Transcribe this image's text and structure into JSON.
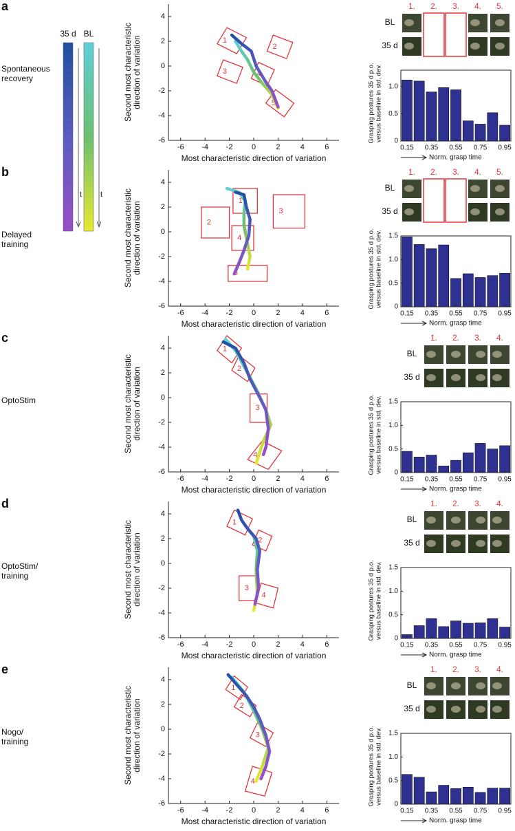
{
  "colorbar_time_labels": [
    "t",
    "t"
  ],
  "panels": [
    {
      "letter": "a",
      "condition": [
        "Spontaneous",
        "recovery"
      ],
      "image_rows": [
        "BL",
        "35 d"
      ],
      "image_labels": [
        "1.",
        "2.",
        "3.",
        "4.",
        "5."
      ],
      "highlighted_images": [
        false,
        true,
        true,
        false,
        false
      ]
    },
    {
      "letter": "b",
      "condition": [
        "Delayed",
        "training"
      ],
      "image_rows": [
        "BL",
        "35 d"
      ],
      "image_labels": [
        "1.",
        "2.",
        "3.",
        "4.",
        "5."
      ],
      "highlighted_images": [
        false,
        true,
        true,
        false,
        false
      ]
    },
    {
      "letter": "c",
      "condition": [
        "OptoStim"
      ],
      "image_rows": [
        "BL",
        "35 d"
      ],
      "image_labels": [
        "1.",
        "2.",
        "3.",
        "4."
      ],
      "highlighted_images": [
        false,
        false,
        false,
        false
      ]
    },
    {
      "letter": "d",
      "condition": [
        "OptoStim/",
        "training"
      ],
      "image_rows": [
        "BL",
        "35 d"
      ],
      "image_labels": [
        "1.",
        "2.",
        "3.",
        "4."
      ],
      "highlighted_images": [
        false,
        false,
        false,
        false
      ]
    },
    {
      "letter": "e",
      "condition": [
        "Nogo/",
        "training"
      ],
      "image_rows": [
        "BL",
        "35 d"
      ],
      "image_labels": [
        "1.",
        "2.",
        "3.",
        "4."
      ],
      "highlighted_images": [
        false,
        false,
        false,
        false
      ]
    }
  ],
  "chart_data": [
    {
      "type": "line",
      "x_label": "Most characteristic direction of variation",
      "y_label": [
        "Second most characteristic",
        "direction of variation"
      ],
      "xlim": [
        -7,
        7
      ],
      "ylim": [
        -6,
        5
      ],
      "xticks": [
        -6,
        -4,
        -2,
        0,
        2,
        4,
        6
      ],
      "yticks": [
        -6,
        -4,
        -2,
        0,
        2,
        4
      ],
      "series": [
        {
          "name": "35 d",
          "color": [
            "#2150a0",
            "#5a5cc0",
            "#9a50c8"
          ],
          "x": [
            -1.8,
            -1,
            -0.2,
            0.2,
            1,
            1.5,
            2
          ],
          "values": [
            2.5,
            1.8,
            1.2,
            0,
            -1.3,
            -2,
            -3.3
          ]
        },
        {
          "name": "BL",
          "color": [
            "#5ed0d8",
            "#6cc070",
            "#e8e830"
          ],
          "x": [
            -1.5,
            -1,
            -0.5,
            0,
            0.8,
            1.5,
            2
          ],
          "values": [
            2,
            1.2,
            0.5,
            -0.5,
            -1.5,
            -2.3,
            -3.4
          ]
        }
      ],
      "regions": [
        {
          "label": "1",
          "x": [
            -3,
            -2.2,
            -0.6,
            -1.4
          ],
          "y": [
            1.8,
            3.1,
            2.3,
            1
          ]
        },
        {
          "label": "2",
          "x": [
            1.1,
            1.6,
            3.2,
            2.7
          ],
          "y": [
            1.2,
            2.5,
            1.9,
            0.6
          ]
        },
        {
          "label": "3",
          "x": [
            -3,
            -2.5,
            -0.9,
            -1.4
          ],
          "y": [
            -0.8,
            0.5,
            -0.1,
            -1.4
          ]
        },
        {
          "label": "4",
          "x": [
            -0.2,
            0.4,
            1.7,
            1.1
          ],
          "y": [
            -1,
            0.3,
            -0.3,
            -1.6
          ]
        },
        {
          "label": "5",
          "x": [
            1,
            1.8,
            3.3,
            2.5
          ],
          "y": [
            -3,
            -1.9,
            -3,
            -4.1
          ]
        }
      ]
    },
    {
      "type": "bar",
      "x_label": "Norm. grasp time",
      "y_label": [
        "Grasping postures 35 d p.o.",
        "versus baseline in std. dev."
      ],
      "color": "#2e3192",
      "x": [
        0.15,
        0.25,
        0.35,
        0.45,
        0.55,
        0.65,
        0.75,
        0.85,
        0.95
      ],
      "values": [
        1.12,
        1.1,
        0.9,
        0.98,
        0.94,
        0.37,
        0.31,
        0.52,
        0.29
      ],
      "xlim": [
        0.1,
        1
      ],
      "ylim": [
        0,
        1.3
      ],
      "xticks": [
        0.15,
        0.35,
        0.55,
        0.75,
        0.95
      ],
      "yticks": [
        0,
        0.5,
        {
          "value": 1,
          "label": "1.0"
        }
      ]
    },
    {
      "type": "line",
      "x_label": "Most characteristic direction of variation",
      "y_label": [
        "Second most characteristic",
        "direction of variation"
      ],
      "xlim": [
        -7,
        7
      ],
      "ylim": [
        -6,
        5
      ],
      "xticks": [
        -6,
        -4,
        -2,
        0,
        2,
        4,
        6
      ],
      "yticks": [
        -6,
        -4,
        -2,
        0,
        2,
        4
      ],
      "series": [
        {
          "color": [
            "#2150a0",
            "#5a5cc0",
            "#9a50c8"
          ],
          "x": [
            -1.5,
            -0.8,
            -0.6,
            -0.3,
            -0.4,
            -0.8,
            -1.2,
            -1.6
          ],
          "values": [
            3.2,
            3,
            2,
            1,
            -0.3,
            -1.5,
            -2.5,
            -3.4
          ]
        },
        {
          "color": [
            "#5ed0d8",
            "#6cc070",
            "#e8e830"
          ],
          "x": [
            -2.2,
            -1.2,
            -0.7,
            -0.8,
            -0.8,
            -0.5,
            -0.3,
            -0.5
          ],
          "values": [
            3.5,
            3.2,
            2.5,
            1.5,
            0.5,
            -1,
            -2,
            -3
          ]
        }
      ],
      "regions": [
        {
          "label": "1",
          "x": [
            -1.7,
            -1.7,
            0.3,
            0.3
          ],
          "y": [
            1.5,
            3.5,
            3.5,
            1.5
          ]
        },
        {
          "label": "2",
          "x": [
            -4.3,
            -4.3,
            -2,
            -2
          ],
          "y": [
            -0.5,
            2,
            2,
            -0.5
          ]
        },
        {
          "label": "3",
          "x": [
            1.6,
            1.6,
            4.2,
            4.2
          ],
          "y": [
            0.3,
            3,
            3,
            0.3
          ]
        },
        {
          "label": "4",
          "x": [
            -1.8,
            -1.8,
            0,
            0
          ],
          "y": [
            -1.5,
            0.5,
            0.5,
            -1.5
          ]
        },
        {
          "label": "5",
          "x": [
            -2.1,
            -2.1,
            1.1,
            1.1
          ],
          "y": [
            -4,
            -2.7,
            -2.7,
            -4
          ]
        }
      ]
    },
    {
      "type": "bar",
      "x_label": "Norm. grasp time",
      "y_label": [
        "Grasping postures 35 d p.o.",
        "versus baseline in std. dev."
      ],
      "color": "#2e3192",
      "x": [
        0.15,
        0.25,
        0.35,
        0.45,
        0.55,
        0.65,
        0.75,
        0.85,
        0.95
      ],
      "values": [
        1.48,
        1.32,
        1.23,
        1.31,
        0.6,
        0.7,
        0.62,
        0.66,
        0.71
      ],
      "xlim": [
        0.1,
        1
      ],
      "ylim": [
        0,
        1.5
      ],
      "xticks": [
        0.15,
        0.35,
        0.55,
        0.75,
        0.95
      ],
      "yticks": [
        0,
        0.5,
        {
          "value": 1,
          "label": "1.0"
        },
        1.5
      ]
    },
    {
      "type": "line",
      "x_label": "Most characteristic direction of variation",
      "y_label": [
        "Second most characteristic",
        "direction of variation"
      ],
      "xlim": [
        -7,
        7
      ],
      "ylim": [
        -6,
        5
      ],
      "xticks": [
        -6,
        -4,
        -2,
        0,
        2,
        4,
        6
      ],
      "yticks": [
        -6,
        -4,
        -2,
        0,
        2,
        4
      ],
      "series": [
        {
          "color": [
            "#2150a0",
            "#5a5cc0",
            "#9a50c8"
          ],
          "x": [
            -2.5,
            -1.5,
            -0.8,
            -0.3,
            0.5,
            1,
            1.2,
            1,
            0.8
          ],
          "values": [
            4.5,
            4,
            2.8,
            1.5,
            0,
            -1,
            -2.5,
            -4,
            -4.6
          ]
        },
        {
          "color": [
            "#5ed0d8",
            "#6cc070",
            "#e8e830"
          ],
          "x": [
            -2.3,
            -1.5,
            -0.5,
            0.3,
            1,
            1.4,
            0.8,
            0.2
          ],
          "values": [
            4.7,
            3.8,
            2,
            0.5,
            -1,
            -2.2,
            -3.5,
            -5.3
          ]
        }
      ],
      "regions": [
        {
          "label": "1",
          "x": [
            -3,
            -2.2,
            -1,
            -1.8
          ],
          "y": [
            3.8,
            5,
            4,
            2.8
          ]
        },
        {
          "label": "2",
          "x": [
            -1.8,
            -1.2,
            0.1,
            -0.5
          ],
          "y": [
            2.2,
            3.4,
            2.4,
            1.3
          ]
        },
        {
          "label": "3",
          "x": [
            -0.3,
            -0.3,
            1.1,
            1.1
          ],
          "y": [
            -2,
            0.3,
            0.3,
            -2
          ]
        },
        {
          "label": "4",
          "x": [
            -0.5,
            0.7,
            2.3,
            1.2
          ],
          "y": [
            -5,
            -3.5,
            -4.3,
            -5.8
          ]
        }
      ]
    },
    {
      "type": "bar",
      "x_label": "Norm. grasp time",
      "y_label": [
        "Grasping postures 35 d p.o.",
        "versus baseline in std. dev."
      ],
      "color": "#2e3192",
      "x": [
        0.15,
        0.25,
        0.35,
        0.45,
        0.55,
        0.65,
        0.75,
        0.85,
        0.95
      ],
      "values": [
        0.45,
        0.33,
        0.37,
        0.14,
        0.26,
        0.42,
        0.62,
        0.5,
        0.57
      ],
      "xlim": [
        0.1,
        1
      ],
      "ylim": [
        0,
        1.5
      ],
      "xticks": [
        0.15,
        0.35,
        0.55,
        0.75,
        0.95
      ],
      "yticks": [
        0,
        0.5,
        {
          "value": 1,
          "label": "1.0"
        },
        1.5
      ]
    },
    {
      "type": "line",
      "x_label": "Most characteristic direction of variation",
      "y_label": [
        "Second most characteristic",
        "direction of variation"
      ],
      "xlim": [
        -7,
        7
      ],
      "ylim": [
        -6,
        5
      ],
      "xticks": [
        -6,
        -4,
        -2,
        0,
        2,
        4,
        6
      ],
      "yticks": [
        -6,
        -4,
        -2,
        0,
        2,
        4
      ],
      "series": [
        {
          "color": [
            "#2150a0",
            "#5a5cc0",
            "#9a50c8"
          ],
          "x": [
            -1.3,
            -1,
            -0.5,
            0.2,
            0.5,
            0.3,
            0.4,
            0.1
          ],
          "values": [
            4.3,
            3.5,
            2.8,
            2,
            1,
            -0.5,
            -2,
            -3.3
          ]
        },
        {
          "color": [
            "#5ed0d8",
            "#6cc070",
            "#e8e830"
          ],
          "x": [
            -0.8,
            0,
            0.3,
            0.2,
            0.3,
            0
          ],
          "values": [
            3.2,
            2.2,
            1,
            -0.5,
            -2.5,
            -3.8
          ]
        }
      ],
      "regions": [
        {
          "label": "1",
          "x": [
            -2.2,
            -1.6,
            -0.1,
            -0.7
          ],
          "y": [
            3,
            4.3,
            3.6,
            2.3
          ]
        },
        {
          "label": "2",
          "x": [
            -0.1,
            0.4,
            1.5,
            1
          ],
          "y": [
            1.5,
            2.7,
            2.2,
            1
          ]
        },
        {
          "label": "3",
          "x": [
            -1.2,
            -1.2,
            0.2,
            0.2
          ],
          "y": [
            -3,
            -1,
            -1,
            -3
          ]
        },
        {
          "label": "4",
          "x": [
            0.2,
            0.6,
            2,
            1.6
          ],
          "y": [
            -3.2,
            -1.6,
            -2,
            -3.6
          ]
        }
      ]
    },
    {
      "type": "bar",
      "x_label": "Norm. grasp time",
      "y_label": [
        "Grasping postures 35 d p.o.",
        "versus baseline in std. dev."
      ],
      "color": "#2e3192",
      "x": [
        0.15,
        0.25,
        0.35,
        0.45,
        0.55,
        0.65,
        0.75,
        0.85,
        0.95
      ],
      "values": [
        0.08,
        0.27,
        0.42,
        0.25,
        0.37,
        0.32,
        0.33,
        0.42,
        0.24
      ],
      "xlim": [
        0.1,
        1
      ],
      "ylim": [
        0,
        1.5
      ],
      "xticks": [
        0.15,
        0.35,
        0.55,
        0.75,
        0.95
      ],
      "yticks": [
        0,
        0.5,
        {
          "value": 1,
          "label": "1.0"
        },
        1.5
      ]
    },
    {
      "type": "line",
      "x_label": "Most characteristic direction of variation",
      "y_label": [
        "Second most characteristic",
        "direction of variation"
      ],
      "xlim": [
        -7,
        7
      ],
      "ylim": [
        -6,
        5
      ],
      "xticks": [
        -6,
        -4,
        -2,
        0,
        2,
        4,
        6
      ],
      "yticks": [
        -6,
        -4,
        -2,
        0,
        2,
        4
      ],
      "series": [
        {
          "color": [
            "#2150a0",
            "#5a5cc0",
            "#9a50c8"
          ],
          "x": [
            -2.1,
            -1.4,
            -0.6,
            0,
            0.5,
            1,
            1.3,
            1,
            0.6
          ],
          "values": [
            4.4,
            3.6,
            2.7,
            1.8,
            0.8,
            -0.5,
            -1.8,
            -3,
            -4
          ]
        },
        {
          "color": [
            "#5ed0d8",
            "#6cc070",
            "#e8e830"
          ],
          "x": [
            -1.8,
            -0.8,
            0,
            0.7,
            1.2,
            0.7,
            0.2
          ],
          "values": [
            4.2,
            3,
            1.5,
            0,
            -1.5,
            -3,
            -4.2
          ]
        }
      ],
      "regions": [
        {
          "label": "1",
          "x": [
            -2.3,
            -1.6,
            -0.5,
            -1.1
          ],
          "y": [
            3.2,
            4.3,
            3.4,
            2.4
          ]
        },
        {
          "label": "2",
          "x": [
            -1.6,
            -1,
            0.2,
            -0.3
          ],
          "y": [
            1.8,
            2.8,
            1.9,
            1
          ]
        },
        {
          "label": "3",
          "x": [
            -0.3,
            0.3,
            1.6,
            1
          ],
          "y": [
            -0.7,
            0.5,
            -0.3,
            -1.4
          ]
        },
        {
          "label": "4",
          "x": [
            -0.7,
            -0.1,
            1.5,
            0.9
          ],
          "y": [
            -5,
            -3,
            -3.5,
            -5.4
          ]
        }
      ]
    },
    {
      "type": "bar",
      "x_label": "Norm. grasp time",
      "y_label": [
        "Grasping postures 35 d p.o.",
        "versus baseline in std. dev."
      ],
      "color": "#2e3192",
      "x": [
        0.15,
        0.25,
        0.35,
        0.45,
        0.55,
        0.65,
        0.75,
        0.85,
        0.95
      ],
      "values": [
        0.63,
        0.57,
        0.26,
        0.4,
        0.33,
        0.36,
        0.25,
        0.34,
        0.34
      ],
      "xlim": [
        0.1,
        1
      ],
      "ylim": [
        0,
        1.5
      ],
      "xticks": [
        0.15,
        0.35,
        0.55,
        0.75,
        0.95
      ],
      "yticks": [
        0,
        0.5,
        {
          "value": 1,
          "label": "1.0"
        },
        1.5
      ]
    }
  ]
}
